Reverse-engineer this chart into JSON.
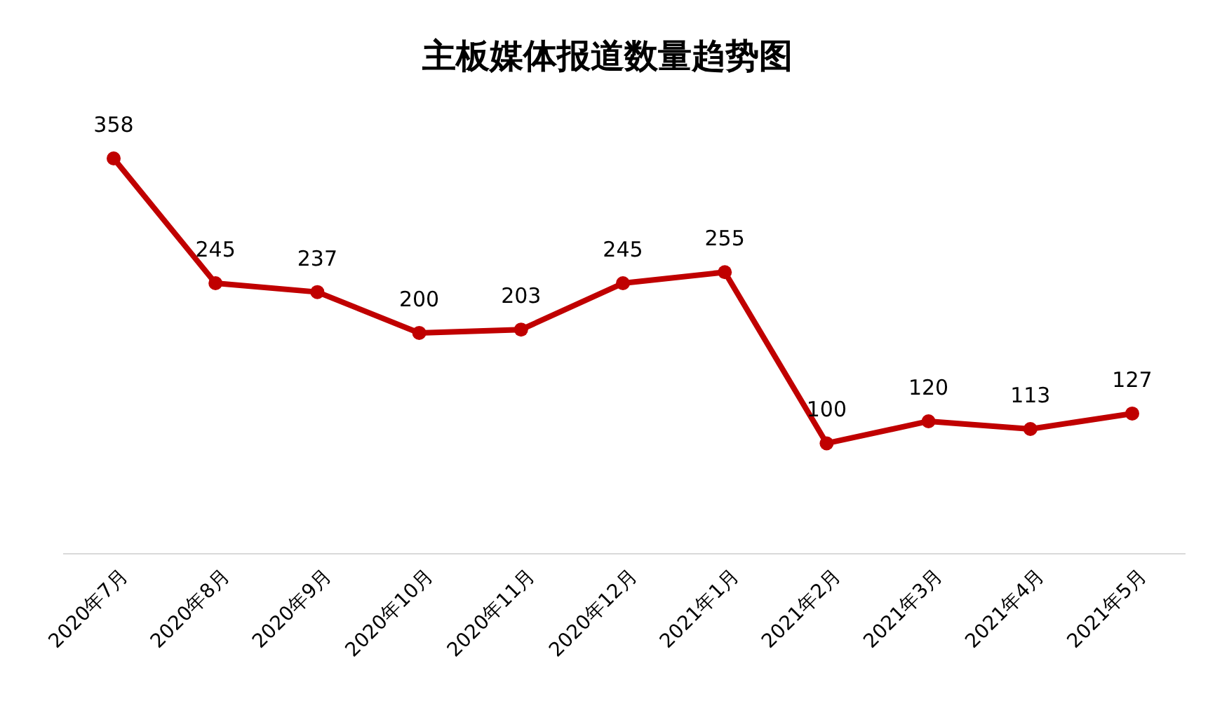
{
  "chart_data": {
    "type": "line",
    "title": "主板媒体报道数量趋势图",
    "categories": [
      "2020年7月",
      "2020年8月",
      "2020年9月",
      "2020年10月",
      "2020年11月",
      "2020年12月",
      "2021年1月",
      "2021年2月",
      "2021年3月",
      "2021年4月",
      "2021年5月"
    ],
    "series": [
      {
        "color": "#c00000",
        "values": [
          358,
          245,
          237,
          200,
          203,
          245,
          255,
          100,
          120,
          113,
          127
        ]
      }
    ],
    "data_labels": true,
    "marker": "circle",
    "line_style": "solid"
  }
}
